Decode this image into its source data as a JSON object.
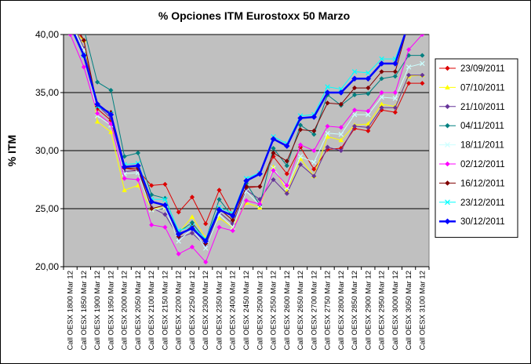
{
  "chart_data": {
    "type": "line",
    "title": "% Opciones ITM Eurostoxx 50 Marzo",
    "ylabel": "% ITM",
    "xlabel": "",
    "ylim": [
      20,
      40
    ],
    "yticks": [
      "20,00",
      "25,00",
      "30,00",
      "35,00",
      "40,00"
    ],
    "ytick_values": [
      20,
      25,
      30,
      35,
      40
    ],
    "grid": "horizontal",
    "legend_position": "right",
    "plot_background": "#c0c0c0",
    "categories": [
      "Call OESX 1800 Mar 12",
      "Call OESX 1850 Mar 12",
      "Call OESX 1900 Mar 12",
      "Call OESX 1950 Mar 12",
      "Call OESX 2000 Mar 12",
      "Call OESX 2050 Mar 12",
      "Call OESX 2100 Mar 12",
      "Call OESX 2150 Mar 12",
      "Call OESX 2200 Mar 12",
      "Call OESX 2250 Mar 12",
      "Call OESX 2300 Mar 12",
      "Call OESX 2350 Mar 12",
      "Call OESX 2400 Mar 12",
      "Call OESX 2450 Mar 12",
      "Call OESX 2500 Mar 12",
      "Call OESX 2550 Mar 12",
      "Call OESX 2600 Mar 12",
      "Call OESX 2650 Mar 12",
      "Call OESX 2700 Mar 12",
      "Call OESX 2750 Mar 12",
      "Call OESX 2800 Mar 12",
      "Call OESX 2850 Mar 12",
      "Call OESX 2900 Mar 12",
      "Call OESX 2950 Mar 12",
      "Call OESX 3000 Mar 12",
      "Call OESX 3050 Mar 12",
      "Call OESX 3100 Mar 12"
    ],
    "series": [
      {
        "name": "23/09/2011",
        "color": "#dd0000",
        "marker": "diamond",
        "width": 1,
        "values": [
          41.0,
          39.5,
          33.6,
          32.6,
          28.5,
          28.3,
          27.0,
          27.1,
          24.7,
          26.0,
          23.7,
          26.6,
          24.5,
          26.8,
          26.9,
          29.5,
          28.0,
          30.3,
          28.4,
          30.1,
          30.2,
          31.9,
          31.7,
          33.5,
          33.3,
          35.8,
          35.8
        ]
      },
      {
        "name": "07/10/2011",
        "color": "#ffff00",
        "marker": "triangle",
        "width": 1,
        "values": [
          40.5,
          39.5,
          32.5,
          31.6,
          26.6,
          27.0,
          25.0,
          25.1,
          22.9,
          24.3,
          22.5,
          24.2,
          23.4,
          25.5,
          25.1,
          28.6,
          26.5,
          29.3,
          27.8,
          31.2,
          30.9,
          32.2,
          32.3,
          34.0,
          33.8,
          36.4,
          36.5
        ]
      },
      {
        "name": "21/10/2011",
        "color": "#663399",
        "marker": "diamond",
        "width": 1,
        "values": [
          41.5,
          38.8,
          33.9,
          32.8,
          28.2,
          28.3,
          25.1,
          24.5,
          22.5,
          22.9,
          21.8,
          24.7,
          23.7,
          26.6,
          25.8,
          27.5,
          26.3,
          28.8,
          27.8,
          30.3,
          30.0,
          32.1,
          32.0,
          33.7,
          33.7,
          36.5,
          36.5
        ]
      },
      {
        "name": "04/11/2011",
        "color": "#008080",
        "marker": "diamond",
        "width": 1,
        "values": [
          41.8,
          40.5,
          35.9,
          35.2,
          29.5,
          29.8,
          26.2,
          25.9,
          23.0,
          23.8,
          22.3,
          25.8,
          24.3,
          27.2,
          25.3,
          30.2,
          28.7,
          32.2,
          31.4,
          34.8,
          33.9,
          34.8,
          34.9,
          36.2,
          36.4,
          38.2,
          38.2
        ]
      },
      {
        "name": "18/11/2011",
        "color": "#ccffff",
        "marker": "x",
        "width": 1,
        "values": [
          41.0,
          38.7,
          33.0,
          32.2,
          28.0,
          28.1,
          24.9,
          25.1,
          22.2,
          23.3,
          21.6,
          24.5,
          23.4,
          26.5,
          25.3,
          28.5,
          26.8,
          29.5,
          29.0,
          31.5,
          31.4,
          33.1,
          33.1,
          34.6,
          34.5,
          37.2,
          37.5
        ]
      },
      {
        "name": "02/12/2011",
        "color": "#ff00ff",
        "marker": "diamond",
        "width": 1,
        "values": [
          40.0,
          37.2,
          33.2,
          32.3,
          27.6,
          27.5,
          23.6,
          23.4,
          21.1,
          21.7,
          20.4,
          23.4,
          23.1,
          25.7,
          25.4,
          28.3,
          27.0,
          30.5,
          30.0,
          32.1,
          32.0,
          33.5,
          33.4,
          35.0,
          35.0,
          38.7,
          40.0
        ]
      },
      {
        "name": "16/12/2011",
        "color": "#800000",
        "marker": "diamond",
        "width": 1,
        "values": [
          41.7,
          39.5,
          33.8,
          33.3,
          28.5,
          28.5,
          25.0,
          25.3,
          22.6,
          23.5,
          22.0,
          25.0,
          24.0,
          26.9,
          26.9,
          29.8,
          29.1,
          31.8,
          31.7,
          34.1,
          34.0,
          35.4,
          35.4,
          36.8,
          36.8,
          41.0,
          41.0
        ]
      },
      {
        "name": "23/12/2011",
        "color": "#00ffff",
        "marker": "x",
        "width": 1,
        "values": [
          41.0,
          38.2,
          33.8,
          33.2,
          28.8,
          28.9,
          25.8,
          25.8,
          23.1,
          23.5,
          22.4,
          25.1,
          24.6,
          27.6,
          28.1,
          31.2,
          30.6,
          33.0,
          33.1,
          35.5,
          35.3,
          36.8,
          36.7,
          37.9,
          37.9,
          41.0,
          41.0
        ]
      },
      {
        "name": "30/12/2011",
        "color": "#0000ff",
        "marker": "diamond",
        "width": 2.5,
        "values": [
          40.8,
          38.2,
          34.0,
          33.1,
          28.6,
          28.7,
          25.6,
          25.3,
          22.8,
          23.3,
          22.2,
          24.9,
          24.4,
          27.4,
          28.0,
          31.0,
          30.4,
          32.8,
          32.9,
          35.0,
          35.0,
          36.2,
          36.2,
          37.5,
          37.5,
          41.0,
          41.0
        ]
      }
    ]
  }
}
